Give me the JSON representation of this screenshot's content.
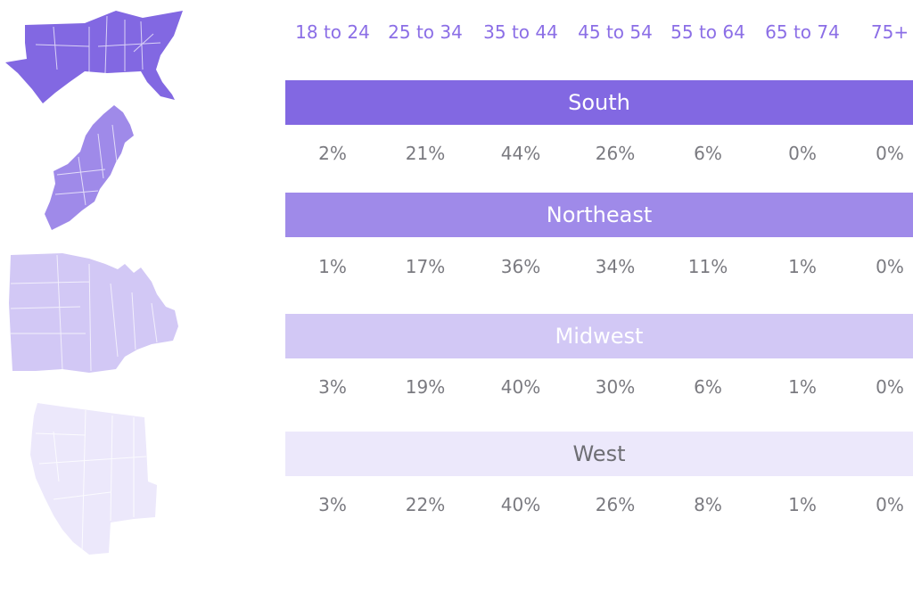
{
  "chart_data": {
    "type": "table",
    "columns": [
      "18 to 24",
      "25 to 34",
      "35 to 44",
      "45 to 54",
      "55 to 64",
      "65 to 74",
      "75+"
    ],
    "regions": [
      {
        "name": "South",
        "values": [
          "2%",
          "21%",
          "44%",
          "26%",
          "6%",
          "0%",
          "0%"
        ],
        "color": "#8268e2",
        "text_color": "#ffffff"
      },
      {
        "name": "Northeast",
        "values": [
          "1%",
          "17%",
          "36%",
          "34%",
          "11%",
          "1%",
          "0%"
        ],
        "color": "#9f8ae9",
        "text_color": "#ffffff"
      },
      {
        "name": "Midwest",
        "values": [
          "3%",
          "19%",
          "40%",
          "30%",
          "6%",
          "1%",
          "0%"
        ],
        "color": "#d2c8f5",
        "text_color": "#ffffff"
      },
      {
        "name": "West",
        "values": [
          "3%",
          "22%",
          "40%",
          "26%",
          "8%",
          "1%",
          "0%"
        ],
        "color": "#ece8fb",
        "text_color": "#6e6e74"
      }
    ]
  },
  "maps": [
    {
      "icon": "south-region-map-icon",
      "color": "#8268e2"
    },
    {
      "icon": "northeast-region-map-icon",
      "color": "#9f8ae9"
    },
    {
      "icon": "midwest-region-map-icon",
      "color": "#d2c8f5"
    },
    {
      "icon": "west-region-map-icon",
      "color": "#ece8fb"
    }
  ],
  "colors": {
    "header_text": "#8b6ee6",
    "value_text": "#7a7a80"
  }
}
